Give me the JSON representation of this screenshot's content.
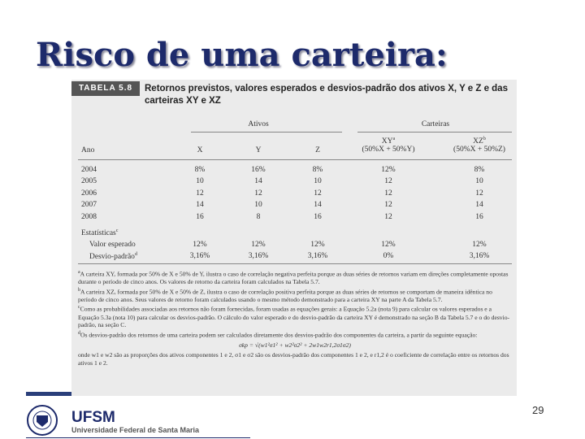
{
  "header": {
    "title": "Risco de uma carteira:"
  },
  "table": {
    "label": "TABELA 5.8",
    "title": "Retornos previstos, valores esperados e desvios-padrão dos ativos X, Y e Z e das carteiras XY e XZ",
    "groups": [
      "Ativos",
      "Carteiras"
    ],
    "columns": [
      {
        "label": "Ano"
      },
      {
        "label": "X"
      },
      {
        "label": "Y"
      },
      {
        "label": "Z"
      },
      {
        "label": "XY",
        "note": "a",
        "sub": "(50%X + 50%Y)"
      },
      {
        "label": "XZ",
        "note": "b",
        "sub": "(50%X + 50%Z)"
      }
    ],
    "rows": [
      [
        "2004",
        "8%",
        "16%",
        "8%",
        "12%",
        "8%"
      ],
      [
        "2005",
        "10",
        "14",
        "10",
        "12",
        "10"
      ],
      [
        "2006",
        "12",
        "12",
        "12",
        "12",
        "12"
      ],
      [
        "2007",
        "14",
        "10",
        "14",
        "12",
        "14"
      ],
      [
        "2008",
        "16",
        "8",
        "16",
        "12",
        "16"
      ]
    ],
    "stats_label": {
      "label": "Estatísticas",
      "note": "c"
    },
    "stats": [
      {
        "label": "Valor esperado",
        "values": [
          "12%",
          "12%",
          "12%",
          "12%",
          "12%"
        ]
      },
      {
        "label": "Desvio-padrão",
        "note": "d",
        "values": [
          "3,16%",
          "3,16%",
          "3,16%",
          "0%",
          "3,16%"
        ]
      }
    ],
    "footnotes": [
      {
        "mark": "a",
        "text": "A carteira XY, formada por 50% de X e 50% de Y, ilustra o caso de correlação negativa perfeita porque as duas séries de retornos variam em direções completamente opostas durante o período de cinco anos. Os valores de retorno da carteira foram calculados na Tabela 5.7."
      },
      {
        "mark": "b",
        "text": "A carteira XZ, formada por 50% de X e 50% de Z, ilustra o caso de correlação positiva perfeita porque as duas séries de retornos se comportam de maneira idêntica no período de cinco anos. Seus valores de retorno foram calculados usando o mesmo método demonstrado para a carteira XY na parte A da Tabela 5.7."
      },
      {
        "mark": "c",
        "text": "Como as probabilidades associadas aos retornos não foram fornecidas, foram usadas as equações gerais: a Equação 5.2a (nota 9) para calcular os valores esperados e a Equação 5.3a (nota 10) para calcular os desvios-padrão. O cálculo do valor esperado e do desvio-padrão da carteira XY é demonstrado na seção B da Tabela 5.7 e o do desvio-padrão, na seção C."
      },
      {
        "mark": "d",
        "text": "Os desvios-padrão dos retornos de uma carteira podem ser calculados diretamente dos desvios-padrão dos componentes da carteira, a partir da seguinte equação:"
      }
    ],
    "formula": "σkp = √(w1²σ1² + w2²σ2² + 2w1w2r1,2σ1σ2)",
    "formula_note": "onde w1 e w2 são as proporções dos ativos componentes 1 e 2, σ1 e σ2 são os desvios-padrão dos componentes 1 e 2, e r1,2 é o coeficiente de correlação entre os retornos dos ativos 1 e 2."
  },
  "footer": {
    "logo": "UFSM",
    "institution": "Universidade Federal de Santa Maria",
    "page": "29"
  }
}
